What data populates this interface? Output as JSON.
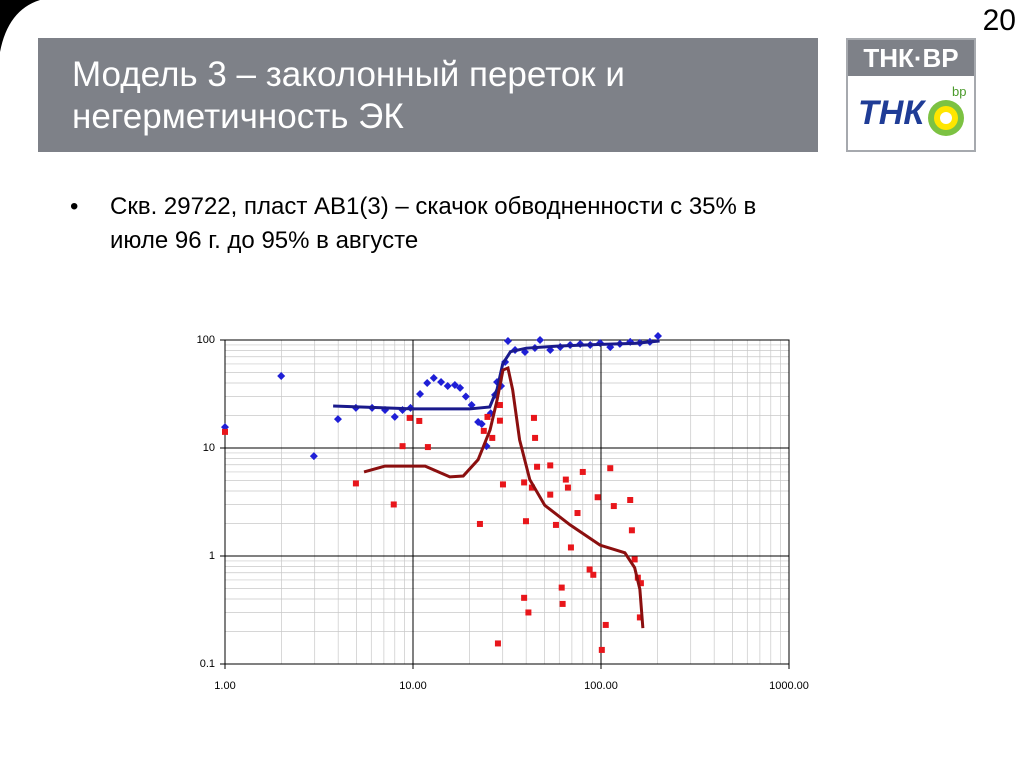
{
  "page_number": "20",
  "title": "Модель 3 – заколонный переток и негерметичность ЭК",
  "bullet": "Скв. 29722, пласт АВ1(3) – скачок обводненности с 35% в июле 96 г. до 95% в августе",
  "logo": {
    "name": "ТНК·ВР",
    "tnk": "ТНК",
    "bp": "bp"
  },
  "chart_data": {
    "type": "scatter",
    "log_x": true,
    "log_y": true,
    "grid": true,
    "xlim": [
      1,
      1000
    ],
    "ylim": [
      0.1,
      100
    ],
    "xticks": [
      {
        "value": 1,
        "label": "1.00"
      },
      {
        "value": 10,
        "label": "10.00"
      },
      {
        "value": 100,
        "label": "100.00"
      },
      {
        "value": 1000,
        "label": "1000.00"
      }
    ],
    "yticks": [
      {
        "value": 0.1,
        "label": "0.1"
      },
      1,
      10,
      100
    ],
    "series": [
      {
        "mode": "markers",
        "marker": "diamond",
        "color": "#1f1fd6",
        "x": [
          1,
          1.99,
          2.97,
          3.99,
          4.97,
          6.06,
          7.1,
          8.0,
          8.8,
          9.7,
          10.9,
          11.9,
          12.9,
          14.1,
          15.3,
          16.7,
          17.8,
          19.1,
          20.5,
          22.2,
          23.2,
          24.6,
          25.9,
          27.3,
          28,
          29.4,
          30.9,
          32,
          34.9,
          39.4,
          44.5,
          47.4,
          53.7,
          60.7,
          68.5,
          77.5,
          87.6,
          98.9,
          112,
          126,
          143,
          161,
          182,
          201
        ],
        "values": [
          15.6,
          46.4,
          8.4,
          18.5,
          23.5,
          23.5,
          22.5,
          19.4,
          22.5,
          23.5,
          31.6,
          40,
          44.5,
          40.8,
          37.5,
          38.3,
          36,
          30,
          25,
          17.4,
          16.7,
          10.4,
          21,
          31,
          40.8,
          37.5,
          62.5,
          97.9,
          80.8,
          77.4,
          84.3,
          100,
          80.8,
          86.2,
          89.9,
          91.8,
          89.9,
          93.8,
          86,
          92,
          96,
          94,
          96,
          109
        ]
      },
      {
        "mode": "markers",
        "marker": "square",
        "color": "#e8161b",
        "x": [
          1,
          4.97,
          7.9,
          8.8,
          9.6,
          10.8,
          12,
          22.7,
          23.8,
          24.9,
          26.4,
          28.3,
          29,
          29,
          30.1,
          39,
          39.9,
          39,
          41.1,
          42.9,
          44,
          44.6,
          45.7,
          53.7,
          53.7,
          57.6,
          61.8,
          62.5,
          65,
          66.7,
          69.2,
          75,
          80,
          87,
          91,
          96,
          101,
          106,
          112,
          117,
          143,
          146,
          151,
          157,
          161,
          163
        ],
        "values": [
          14.1,
          4.7,
          3.0,
          10.4,
          19,
          17.8,
          10.2,
          1.98,
          14.4,
          19.4,
          12.4,
          0.155,
          25,
          17.9,
          4.6,
          4.8,
          2.1,
          0.41,
          0.3,
          4.3,
          19,
          12.4,
          6.7,
          6.9,
          3.7,
          1.94,
          0.51,
          0.36,
          5.1,
          4.3,
          1.2,
          2.5,
          6.0,
          0.75,
          0.67,
          3.5,
          0.135,
          0.23,
          6.5,
          2.9,
          3.3,
          1.73,
          0.93,
          0.63,
          0.27,
          0.56
        ]
      },
      {
        "mode": "line",
        "color": "#1a1a8c",
        "x": [
          3.76,
          10,
          20,
          25.6,
          28,
          30,
          33,
          40,
          60,
          100,
          150,
          205
        ],
        "values": [
          24.5,
          23,
          23,
          24,
          35,
          60,
          78,
          84,
          88,
          91,
          93,
          98
        ]
      },
      {
        "mode": "line",
        "color": "#8b0f0f",
        "x": [
          5.49,
          7.1,
          11.6,
          15.7,
          18.5,
          22.2,
          25.7,
          28,
          30.1,
          32,
          33.9,
          36.9,
          41.8,
          50.2,
          68.5,
          98.9,
          134,
          151,
          161,
          167
        ],
        "values": [
          6.0,
          6.8,
          6.8,
          5.4,
          5.5,
          7.8,
          14.7,
          27.8,
          52.7,
          55,
          34.5,
          11.9,
          5.1,
          2.95,
          1.94,
          1.26,
          1.07,
          0.78,
          0.49,
          0.215
        ]
      }
    ]
  }
}
